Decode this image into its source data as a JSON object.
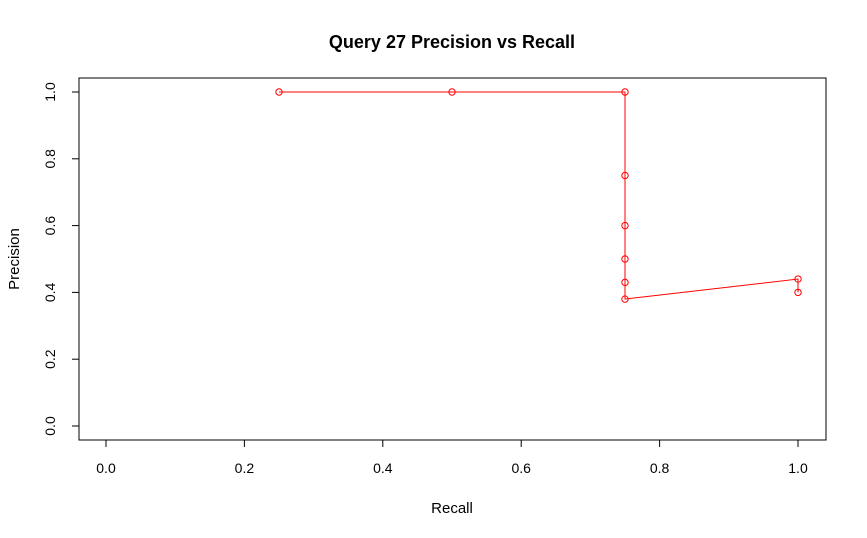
{
  "chart_data": {
    "type": "line",
    "title": "Query 27 Precision vs Recall",
    "xlabel": "Recall",
    "ylabel": "Precision",
    "xlim": [
      0.0,
      1.0
    ],
    "ylim": [
      0.0,
      1.0
    ],
    "x_ticks": [
      "0.0",
      "0.2",
      "0.4",
      "0.6",
      "0.8",
      "1.0"
    ],
    "y_ticks": [
      "0.0",
      "0.2",
      "0.4",
      "0.6",
      "0.8",
      "1.0"
    ],
    "grid": false,
    "series": [
      {
        "color": "#ff0000",
        "marker": "open-circle",
        "points": [
          {
            "x": 0.25,
            "y": 1.0
          },
          {
            "x": 0.5,
            "y": 1.0
          },
          {
            "x": 0.75,
            "y": 1.0
          },
          {
            "x": 0.75,
            "y": 0.75
          },
          {
            "x": 0.75,
            "y": 0.6
          },
          {
            "x": 0.75,
            "y": 0.5
          },
          {
            "x": 0.75,
            "y": 0.43
          },
          {
            "x": 0.75,
            "y": 0.38
          },
          {
            "x": 1.0,
            "y": 0.44
          },
          {
            "x": 1.0,
            "y": 0.4
          }
        ]
      }
    ]
  }
}
